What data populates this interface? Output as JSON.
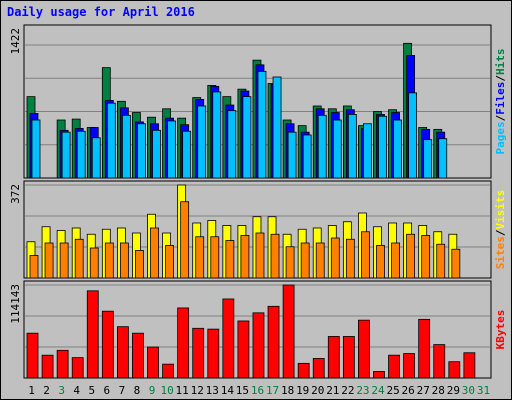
{
  "title": "Daily usage for April 2016",
  "colors": {
    "hits": "#008040",
    "files": "#0000ff",
    "pages": "#00c0ff",
    "visits": "#ffff00",
    "sites": "#ff8000",
    "kbytes": "#ff0000",
    "weekend_label": "#008040",
    "grid": "#808080",
    "panel_bg": "#c0c0c0"
  },
  "right_labels": {
    "top": [
      {
        "text": "Pages",
        "color": "#00c0ff"
      },
      {
        "text": "/",
        "color": "#000000"
      },
      {
        "text": "Files",
        "color": "#0000ff"
      },
      {
        "text": "/",
        "color": "#000000"
      },
      {
        "text": "Hits",
        "color": "#008040"
      }
    ],
    "mid": [
      {
        "text": "Sites",
        "color": "#ff8000"
      },
      {
        "text": "/",
        "color": "#000000"
      },
      {
        "text": "Visits",
        "color": "#ffff00"
      }
    ],
    "bot": [
      {
        "text": "KBytes",
        "color": "#ff0000"
      }
    ]
  },
  "chart_data": {
    "type": "bar",
    "categories": [
      "1",
      "2",
      "3",
      "4",
      "5",
      "6",
      "7",
      "8",
      "9",
      "10",
      "11",
      "12",
      "13",
      "14",
      "15",
      "16",
      "17",
      "18",
      "19",
      "20",
      "21",
      "22",
      "23",
      "24",
      "25",
      "26",
      "27",
      "28",
      "29",
      "30",
      "31"
    ],
    "weekend_days": [
      "3",
      "9",
      "10",
      "16",
      "17",
      "23",
      "24",
      "30",
      "31"
    ],
    "panels": [
      {
        "id": "top",
        "ymax_label": "1422",
        "ymax": 1422,
        "series": [
          {
            "name": "Hits",
            "values": [
              870,
              0,
              620,
              630,
              540,
              1180,
              820,
              700,
              650,
              740,
              640,
              860,
              990,
              870,
              950,
              1260,
              1010,
              620,
              560,
              770,
              740,
              770,
              560,
              710,
              730,
              1440,
              540,
              520,
              0,
              0,
              0
            ]
          },
          {
            "name": "Files",
            "values": [
              690,
              0,
              510,
              530,
              540,
              830,
              750,
              600,
              580,
              640,
              570,
              840,
              980,
              780,
              930,
              1210,
              1000,
              580,
              490,
              740,
              700,
              730,
              530,
              680,
              700,
              1310,
              520,
              490,
              0,
              0,
              0
            ]
          },
          {
            "name": "Pages",
            "values": [
              620,
              0,
              490,
              500,
              430,
              800,
              670,
              580,
              510,
              610,
              500,
              770,
              920,
              720,
              870,
              1140,
              1080,
              490,
              460,
              670,
              620,
              680,
              580,
              660,
              620,
              910,
              410,
              420,
              0,
              0,
              0
            ]
          }
        ]
      },
      {
        "id": "mid",
        "ymax_label": "372",
        "ymax": 372,
        "series": [
          {
            "name": "Visits",
            "values": [
              145,
              205,
              190,
              200,
              175,
              195,
              200,
              180,
              255,
              180,
              372,
              220,
              230,
              210,
              210,
              245,
              245,
              175,
              195,
              200,
              210,
              225,
              260,
              205,
              220,
              220,
              210,
              185,
              175,
              0,
              0
            ]
          },
          {
            "name": "Sites",
            "values": [
              90,
              140,
              140,
              155,
              120,
              140,
              140,
              110,
              200,
              130,
              305,
              165,
              165,
              150,
              170,
              180,
              175,
              125,
              140,
              140,
              160,
              155,
              185,
              130,
              140,
              175,
              170,
              135,
              115,
              0,
              0
            ]
          }
        ]
      },
      {
        "id": "bot",
        "ymax_label": "114143",
        "ymax": 114143,
        "series": [
          {
            "name": "KBytes",
            "values": [
              55000,
              28000,
              34000,
              25000,
              107000,
              82000,
              63000,
              55000,
              38000,
              17000,
              86000,
              61000,
              60000,
              97000,
              70000,
              80000,
              88000,
              114143,
              18000,
              24000,
              51000,
              51000,
              71000,
              8000,
              28000,
              30000,
              72000,
              41000,
              20000,
              31000,
              0
            ]
          }
        ]
      }
    ]
  }
}
